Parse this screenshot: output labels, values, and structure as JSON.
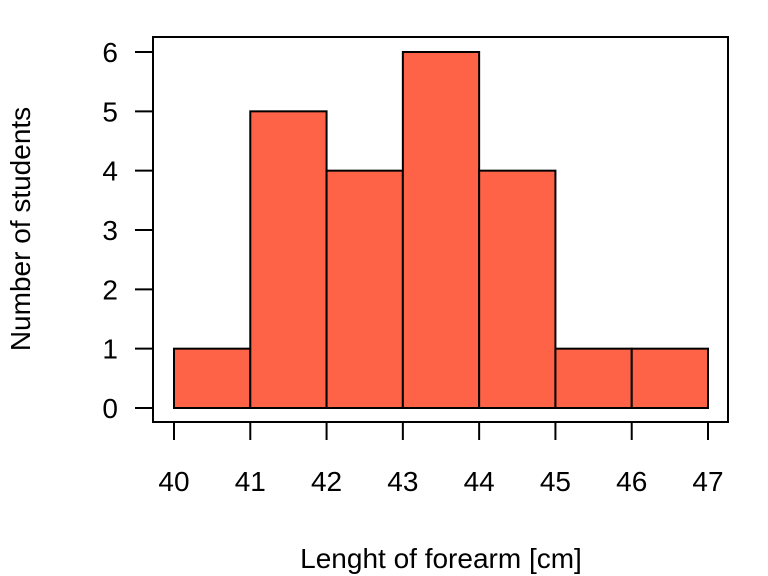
{
  "chart_data": {
    "type": "bar",
    "title": "",
    "xlabel": "Lenght of forearm [cm]",
    "ylabel": "Number of students",
    "bin_edges": [
      40,
      41,
      42,
      43,
      44,
      45,
      46,
      47
    ],
    "values": [
      1,
      5,
      4,
      6,
      4,
      1,
      1
    ],
    "x_ticks": [
      "40",
      "41",
      "42",
      "43",
      "44",
      "45",
      "46",
      "47"
    ],
    "y_ticks": [
      "0",
      "1",
      "2",
      "3",
      "4",
      "5",
      "6"
    ],
    "xlim": [
      40,
      47
    ],
    "ylim": [
      0,
      6
    ],
    "bar_color": "#FF6347",
    "bar_edge_color": "#000000",
    "grid": false,
    "legend": "none"
  }
}
